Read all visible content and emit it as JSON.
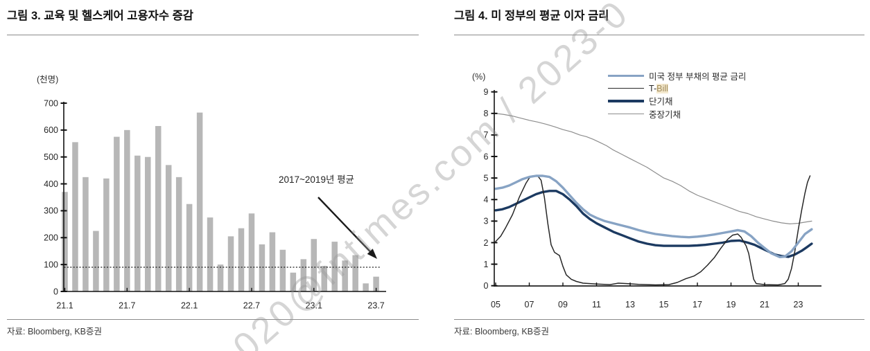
{
  "watermark": {
    "text": "020@fntimes.com / 2023-0"
  },
  "left_panel": {
    "title": "그림 3. 교육 및 헬스케어 고용자수 증감",
    "unit_label": "(천명)",
    "annotation": "2017~2019년 평균",
    "source": "자료: Bloomberg, KB증권"
  },
  "right_panel": {
    "title": "그림 4. 미 정부의 평균 이자 금리",
    "unit_label": "(%)",
    "source": "자료: Bloomberg, KB증권"
  },
  "chart_data": [
    {
      "type": "bar",
      "title": "교육 및 헬스케어 고용자수 증감",
      "ylabel": "천명",
      "ylim": [
        0,
        700
      ],
      "y_ticks": [
        0,
        100,
        200,
        300,
        400,
        500,
        600,
        700
      ],
      "x_tick_labels": [
        "21.1",
        "21.7",
        "22.1",
        "22.7",
        "23.1",
        "23.7"
      ],
      "categories": [
        "21.1",
        "21.2",
        "21.3",
        "21.4",
        "21.5",
        "21.6",
        "21.7",
        "21.8",
        "21.9",
        "21.10",
        "21.11",
        "21.12",
        "22.1",
        "22.2",
        "22.3",
        "22.4",
        "22.5",
        "22.6",
        "22.7",
        "22.8",
        "22.9",
        "22.10",
        "22.11",
        "22.12",
        "23.1",
        "23.2",
        "23.3",
        "23.4",
        "23.5",
        "23.6",
        "23.7"
      ],
      "values": [
        370,
        555,
        425,
        225,
        420,
        575,
        600,
        505,
        500,
        615,
        470,
        425,
        325,
        665,
        275,
        100,
        205,
        235,
        290,
        175,
        220,
        155,
        70,
        120,
        195,
        95,
        185,
        115,
        135,
        30,
        55
      ],
      "bar_color": "#b7b7b7",
      "reference_line": {
        "value": 90,
        "label": "2017~2019년 평균",
        "style": "dotted",
        "color": "#1a1a1a"
      }
    },
    {
      "type": "line",
      "title": "미 정부의 평균 이자 금리",
      "ylabel": "%",
      "ylim": [
        0,
        9
      ],
      "y_ticks": [
        0,
        1,
        2,
        3,
        4,
        5,
        6,
        7,
        8,
        9
      ],
      "x_tick_labels": [
        "05",
        "07",
        "09",
        "11",
        "13",
        "15",
        "17",
        "19",
        "21",
        "23"
      ],
      "x_tick_years": [
        2005,
        2007,
        2009,
        2011,
        2013,
        2015,
        2017,
        2019,
        2021,
        2023
      ],
      "xlim": [
        2005,
        2024.4
      ],
      "legend_position": "top-center",
      "series": [
        {
          "name": "미국 정부 부채의 평균 금리",
          "color": "#87a3c4",
          "width": 3.4,
          "points": [
            [
              2005,
              4.5
            ],
            [
              2005.4,
              4.55
            ],
            [
              2005.8,
              4.65
            ],
            [
              2006.2,
              4.8
            ],
            [
              2006.6,
              4.95
            ],
            [
              2007,
              5.05
            ],
            [
              2007.4,
              5.1
            ],
            [
              2007.8,
              5.1
            ],
            [
              2008.2,
              5.05
            ],
            [
              2008.6,
              4.85
            ],
            [
              2009,
              4.55
            ],
            [
              2009.4,
              4.2
            ],
            [
              2009.8,
              3.85
            ],
            [
              2010.2,
              3.55
            ],
            [
              2010.6,
              3.3
            ],
            [
              2011,
              3.15
            ],
            [
              2011.5,
              3.0
            ],
            [
              2012,
              2.9
            ],
            [
              2012.5,
              2.8
            ],
            [
              2013,
              2.7
            ],
            [
              2013.5,
              2.58
            ],
            [
              2014,
              2.48
            ],
            [
              2014.5,
              2.4
            ],
            [
              2015,
              2.35
            ],
            [
              2015.5,
              2.3
            ],
            [
              2016,
              2.27
            ],
            [
              2016.5,
              2.25
            ],
            [
              2017,
              2.28
            ],
            [
              2017.5,
              2.32
            ],
            [
              2018,
              2.38
            ],
            [
              2018.5,
              2.45
            ],
            [
              2019,
              2.52
            ],
            [
              2019.4,
              2.58
            ],
            [
              2019.8,
              2.52
            ],
            [
              2020.2,
              2.3
            ],
            [
              2020.6,
              2.0
            ],
            [
              2021,
              1.75
            ],
            [
              2021.4,
              1.5
            ],
            [
              2021.9,
              1.33
            ],
            [
              2022.2,
              1.35
            ],
            [
              2022.6,
              1.6
            ],
            [
              2023,
              2.0
            ],
            [
              2023.4,
              2.4
            ],
            [
              2023.8,
              2.62
            ]
          ]
        },
        {
          "name": "T-Bill",
          "legend_pre": "T-",
          "legend_highlight": "Bill",
          "color": "#262626",
          "width": 1.5,
          "points": [
            [
              2005,
              2.05
            ],
            [
              2005.3,
              2.3
            ],
            [
              2005.6,
              2.7
            ],
            [
              2006,
              3.3
            ],
            [
              2006.4,
              4.1
            ],
            [
              2006.8,
              4.75
            ],
            [
              2007,
              5.0
            ],
            [
              2007.2,
              5.1
            ],
            [
              2007.5,
              5.1
            ],
            [
              2007.7,
              4.9
            ],
            [
              2007.9,
              4.1
            ],
            [
              2008.1,
              2.9
            ],
            [
              2008.3,
              1.9
            ],
            [
              2008.5,
              1.55
            ],
            [
              2008.8,
              1.4
            ],
            [
              2009,
              0.9
            ],
            [
              2009.2,
              0.5
            ],
            [
              2009.5,
              0.3
            ],
            [
              2009.8,
              0.2
            ],
            [
              2010.2,
              0.12
            ],
            [
              2011,
              0.08
            ],
            [
              2011.8,
              0.05
            ],
            [
              2012.3,
              0.12
            ],
            [
              2012.8,
              0.1
            ],
            [
              2013.5,
              0.06
            ],
            [
              2014.5,
              0.04
            ],
            [
              2015.3,
              0.05
            ],
            [
              2015.8,
              0.15
            ],
            [
              2016.3,
              0.32
            ],
            [
              2016.8,
              0.45
            ],
            [
              2017.2,
              0.65
            ],
            [
              2017.6,
              0.95
            ],
            [
              2018,
              1.3
            ],
            [
              2018.4,
              1.75
            ],
            [
              2018.8,
              2.15
            ],
            [
              2019.1,
              2.35
            ],
            [
              2019.4,
              2.4
            ],
            [
              2019.6,
              2.25
            ],
            [
              2019.9,
              1.85
            ],
            [
              2020.05,
              1.5
            ],
            [
              2020.2,
              0.9
            ],
            [
              2020.35,
              0.3
            ],
            [
              2020.5,
              0.1
            ],
            [
              2021,
              0.05
            ],
            [
              2021.8,
              0.04
            ],
            [
              2022.2,
              0.1
            ],
            [
              2022.4,
              0.3
            ],
            [
              2022.6,
              0.8
            ],
            [
              2022.8,
              1.6
            ],
            [
              2023,
              2.6
            ],
            [
              2023.2,
              3.5
            ],
            [
              2023.4,
              4.3
            ],
            [
              2023.55,
              4.8
            ],
            [
              2023.7,
              5.1
            ]
          ]
        },
        {
          "name": "단기채",
          "color": "#1c3a61",
          "width": 3.4,
          "points": [
            [
              2005,
              3.5
            ],
            [
              2005.4,
              3.55
            ],
            [
              2005.8,
              3.65
            ],
            [
              2006.2,
              3.8
            ],
            [
              2006.6,
              3.95
            ],
            [
              2007,
              4.1
            ],
            [
              2007.4,
              4.25
            ],
            [
              2007.8,
              4.35
            ],
            [
              2008.2,
              4.4
            ],
            [
              2008.6,
              4.4
            ],
            [
              2009,
              4.25
            ],
            [
              2009.4,
              4.0
            ],
            [
              2009.8,
              3.7
            ],
            [
              2010.2,
              3.35
            ],
            [
              2010.6,
              3.1
            ],
            [
              2011,
              2.9
            ],
            [
              2011.5,
              2.7
            ],
            [
              2012,
              2.5
            ],
            [
              2012.5,
              2.35
            ],
            [
              2013,
              2.2
            ],
            [
              2013.5,
              2.05
            ],
            [
              2014,
              1.95
            ],
            [
              2014.5,
              1.88
            ],
            [
              2015,
              1.85
            ],
            [
              2015.8,
              1.85
            ],
            [
              2016.5,
              1.85
            ],
            [
              2017,
              1.87
            ],
            [
              2017.5,
              1.9
            ],
            [
              2018,
              1.95
            ],
            [
              2018.5,
              2.0
            ],
            [
              2019,
              2.08
            ],
            [
              2019.5,
              2.1
            ],
            [
              2020,
              2.0
            ],
            [
              2020.4,
              1.9
            ],
            [
              2020.8,
              1.75
            ],
            [
              2021.2,
              1.6
            ],
            [
              2021.6,
              1.45
            ],
            [
              2022,
              1.38
            ],
            [
              2022.4,
              1.34
            ],
            [
              2022.8,
              1.45
            ],
            [
              2023.2,
              1.62
            ],
            [
              2023.5,
              1.78
            ],
            [
              2023.8,
              1.95
            ]
          ]
        },
        {
          "name": "중장기채",
          "color": "#8d8d8d",
          "width": 1.2,
          "points": [
            [
              2005,
              8.0
            ],
            [
              2005.5,
              7.95
            ],
            [
              2006,
              7.88
            ],
            [
              2006.5,
              7.78
            ],
            [
              2007,
              7.68
            ],
            [
              2007.5,
              7.6
            ],
            [
              2008,
              7.5
            ],
            [
              2008.5,
              7.38
            ],
            [
              2009,
              7.25
            ],
            [
              2009.5,
              7.15
            ],
            [
              2010,
              7.0
            ],
            [
              2010.4,
              6.92
            ],
            [
              2010.8,
              6.8
            ],
            [
              2011.2,
              6.65
            ],
            [
              2011.6,
              6.5
            ],
            [
              2012,
              6.3
            ],
            [
              2012.5,
              6.1
            ],
            [
              2013,
              5.9
            ],
            [
              2013.5,
              5.7
            ],
            [
              2014,
              5.5
            ],
            [
              2014.5,
              5.25
            ],
            [
              2015,
              5.0
            ],
            [
              2015.5,
              4.85
            ],
            [
              2016,
              4.65
            ],
            [
              2016.5,
              4.4
            ],
            [
              2017,
              4.2
            ],
            [
              2017.5,
              4.05
            ],
            [
              2018,
              3.9
            ],
            [
              2018.5,
              3.75
            ],
            [
              2019,
              3.6
            ],
            [
              2019.5,
              3.45
            ],
            [
              2020,
              3.35
            ],
            [
              2020.5,
              3.2
            ],
            [
              2021,
              3.1
            ],
            [
              2021.5,
              3.0
            ],
            [
              2022,
              2.92
            ],
            [
              2022.5,
              2.87
            ],
            [
              2023,
              2.9
            ],
            [
              2023.4,
              2.95
            ],
            [
              2023.8,
              3.0
            ]
          ]
        }
      ]
    }
  ]
}
